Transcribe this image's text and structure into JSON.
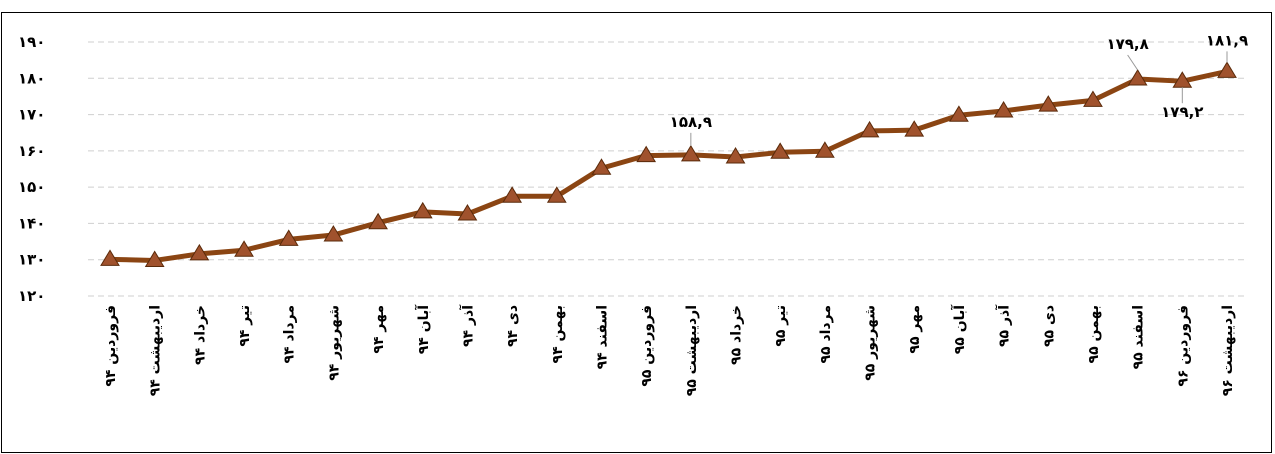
{
  "chart_data": {
    "type": "line",
    "title": "",
    "xlabel": "",
    "ylabel": "",
    "ylim": [
      120,
      190
    ],
    "yticks": [
      "۱۲۰",
      "۱۳۰",
      "۱۴۰",
      "۱۵۰",
      "۱۶۰",
      "۱۷۰",
      "۱۸۰",
      "۱۹۰"
    ],
    "grid": "horizontal-dashed",
    "legend": "none",
    "line_color": "#8B4513",
    "marker_color": "#A0522D",
    "categories": [
      "فروردین ۹۴",
      "اردیبهشت ۹۴",
      "خرداد ۹۴",
      "تیر ۹۴",
      "مرداد ۹۴",
      "شهریور ۹۴",
      "مهر ۹۴",
      "آبان ۹۴",
      "آذر ۹۴",
      "دی ۹۴",
      "بهمن ۹۴",
      "اسفند ۹۴",
      "فروردین ۹۵",
      "اردیبهشت ۹۵",
      "خرداد ۹۵",
      "تیر ۹۵",
      "مرداد ۹۵",
      "شهریور ۹۵",
      "مهر ۹۵",
      "آبان ۹۵",
      "آذر ۹۵",
      "دی ۹۵",
      "بهمن ۹۵",
      "اسفند ۹۵",
      "فروردین ۹۶",
      "اردیبهشت ۹۶"
    ],
    "series": [
      {
        "values": [
          130.1,
          129.8,
          131.6,
          132.6,
          135.6,
          136.8,
          140.2,
          143.2,
          142.6,
          147.5,
          147.5,
          155.2,
          158.7,
          158.9,
          158.3,
          159.6,
          159.9,
          165.5,
          165.7,
          169.8,
          171.0,
          172.6,
          173.9,
          179.8,
          179.2,
          181.9
        ]
      }
    ],
    "data_labels": [
      {
        "index": 13,
        "text": "۱۵۸,۹"
      },
      {
        "index": 23,
        "text": "۱۷۹,۸"
      },
      {
        "index": 24,
        "text": "۱۷۹,۲"
      },
      {
        "index": 25,
        "text": "۱۸۱,۹"
      }
    ]
  }
}
